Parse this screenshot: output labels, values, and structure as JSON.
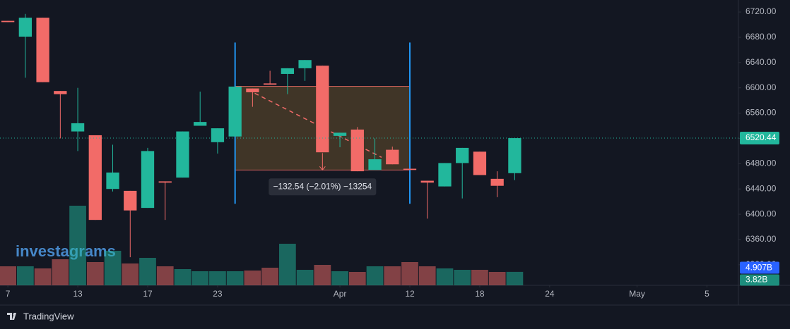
{
  "chart_data": {
    "type": "candlestick",
    "watermark": "investagrams",
    "xlim": [
      -0.45,
      41.8
    ],
    "xticks": [
      {
        "value": 0,
        "label": "7"
      },
      {
        "value": 4,
        "label": "13"
      },
      {
        "value": 8,
        "label": "17"
      },
      {
        "value": 12,
        "label": "23"
      },
      {
        "value": 19,
        "label": "Apr"
      },
      {
        "value": 23,
        "label": "12"
      },
      {
        "value": 27,
        "label": "18"
      },
      {
        "value": 31,
        "label": "24"
      },
      {
        "value": 36,
        "label": "May"
      },
      {
        "value": 40,
        "label": "5"
      }
    ],
    "ylim": [
      6287.5,
      6739
    ],
    "yticks": [
      {
        "value": 6320,
        "label": "6320.00"
      },
      {
        "value": 6360,
        "label": "6360.00"
      },
      {
        "value": 6400,
        "label": "6400.00"
      },
      {
        "value": 6440,
        "label": "6440.00"
      },
      {
        "value": 6480,
        "label": "6480.00"
      },
      {
        "value": 6520,
        "label": "6520.00"
      },
      {
        "value": 6560,
        "label": "6560.00"
      },
      {
        "value": 6600,
        "label": "6600.00"
      },
      {
        "value": 6640,
        "label": "6640.00"
      },
      {
        "value": 6680,
        "label": "6680.00"
      },
      {
        "value": 6720,
        "label": "6720.00"
      }
    ],
    "up_color": "#22b79c",
    "down_color": "#f26b68",
    "last_price_line": true,
    "open": [
      6706,
      6681,
      6711,
      6595,
      6531,
      6525,
      6440,
      6437,
      6410,
      6452,
      6458,
      6540,
      6514,
      6523,
      6599,
      6607,
      6622,
      6631,
      6635,
      6524,
      6534,
      6470,
      6502,
      6472,
      6453,
      6444,
      6481,
      6499,
      6456,
      6465
    ],
    "high": [
      6706,
      6717,
      6711,
      6595,
      6600,
      6525,
      6510,
      6437,
      6505,
      6452,
      6531,
      6594,
      6536,
      6602,
      6599,
      6627,
      6631,
      6644,
      6635,
      6529,
      6538,
      6520,
      6507,
      6472,
      6453,
      6481,
      6505,
      6499,
      6468,
      6520.44
    ],
    "low": [
      6704,
      6616,
      6609,
      6520,
      6500,
      6391,
      6436,
      6332,
      6410,
      6391,
      6458,
      6540,
      6496,
      6523,
      6570,
      6605,
      6590,
      6611,
      6498,
      6506,
      6468,
      6470,
      6479,
      6470,
      6393,
      6444,
      6425,
      6462,
      6427,
      6454
    ],
    "close": [
      6704,
      6711,
      6609,
      6590,
      6544,
      6391,
      6466,
      6406,
      6500,
      6450,
      6531,
      6546,
      6536,
      6602,
      6593,
      6605,
      6631,
      6644,
      6498,
      6529,
      6468,
      6487,
      6479,
      6470,
      6450,
      6481,
      6505,
      6462,
      6445,
      6520.44
    ],
    "volume": [
      5.4,
      5.4,
      4.8,
      7.4,
      22.6,
      6.6,
      9.8,
      6.2,
      7.8,
      5.4,
      4.6,
      4.0,
      4.0,
      4.0,
      4.2,
      5.0,
      11.8,
      4.4,
      5.8,
      4.0,
      3.8,
      5.4,
      5.4,
      6.6,
      5.4,
      4.8,
      4.4,
      4.4,
      3.8,
      3.82
    ],
    "volume_ylim": [
      0,
      81
    ],
    "volume_ma": {
      "value": 4.907,
      "label": "4.907B"
    },
    "volume_tag": {
      "value": 3.82,
      "label": "3.82B"
    },
    "measure": {
      "start_index": 13,
      "end_index": 23,
      "start_price": 6602.54,
      "end_price": 6470,
      "label": "−132.54 (−2.01%) −13254"
    }
  },
  "footer": {
    "brand": "TradingView"
  }
}
